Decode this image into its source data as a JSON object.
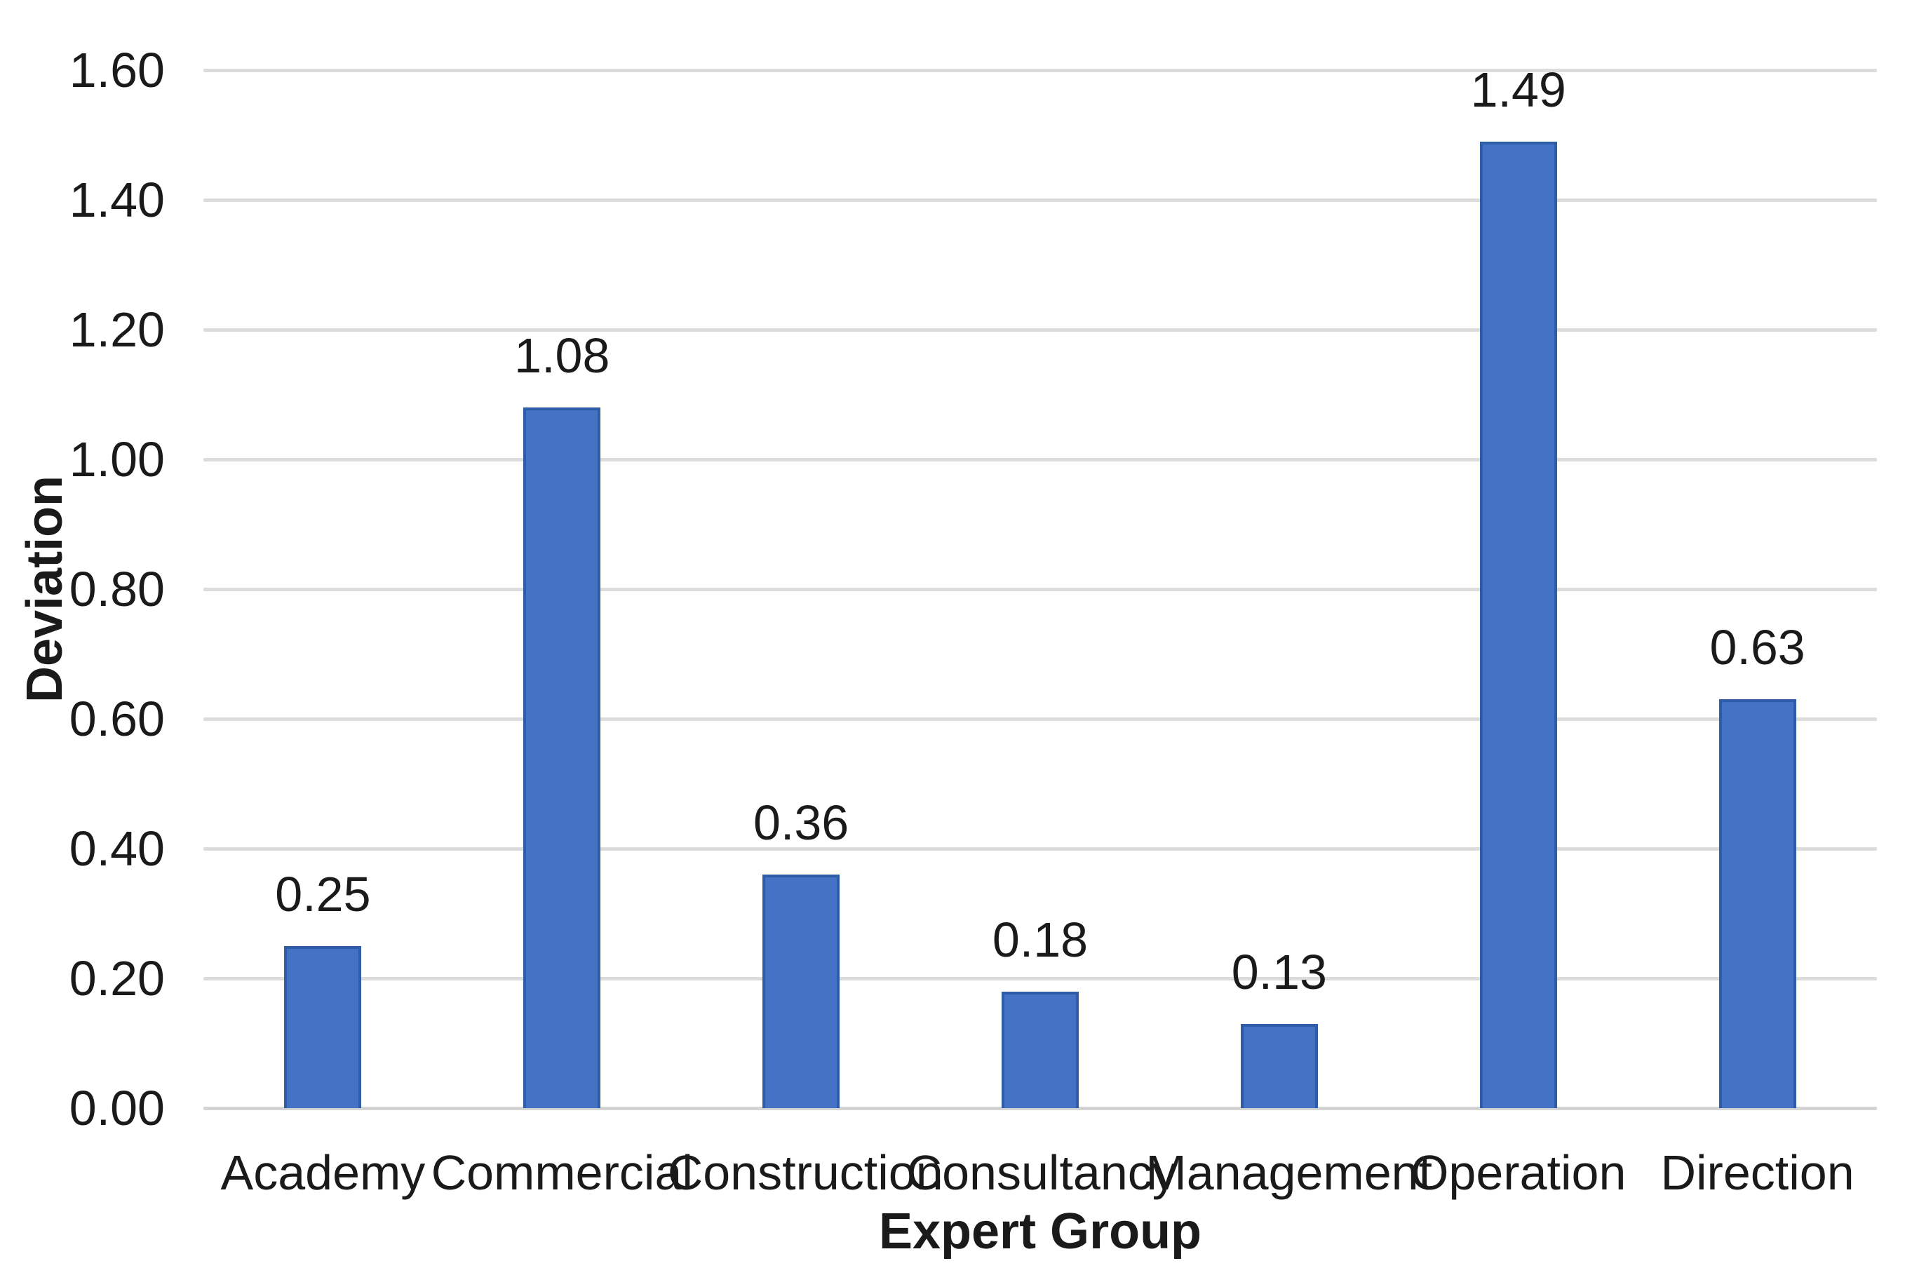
{
  "chart_data": {
    "type": "bar",
    "title": "",
    "xlabel": "Expert Group",
    "ylabel": "Deviation",
    "categories": [
      "Academy",
      "Commercial",
      "Construction",
      "Consultancy",
      "Management",
      "Operation",
      "Direction"
    ],
    "values": [
      0.25,
      1.08,
      0.36,
      0.18,
      0.13,
      1.49,
      0.63
    ],
    "data_labels": [
      "0.25",
      "1.08",
      "0.36",
      "0.18",
      "0.13",
      "1.49",
      "0.63"
    ],
    "ylim": [
      0,
      1.6
    ],
    "ytick_step": 0.2,
    "ytick_labels": [
      "0.00",
      "0.20",
      "0.40",
      "0.60",
      "0.80",
      "1.00",
      "1.20",
      "1.40",
      "1.60"
    ],
    "grid": true,
    "legend": false,
    "colors": {
      "bar_fill": "#4472C4",
      "bar_border": "#2E5CA6",
      "gridline": "#DCDCDC",
      "axis_line": "#D4D4D4",
      "text": "#1A1A1A"
    }
  }
}
